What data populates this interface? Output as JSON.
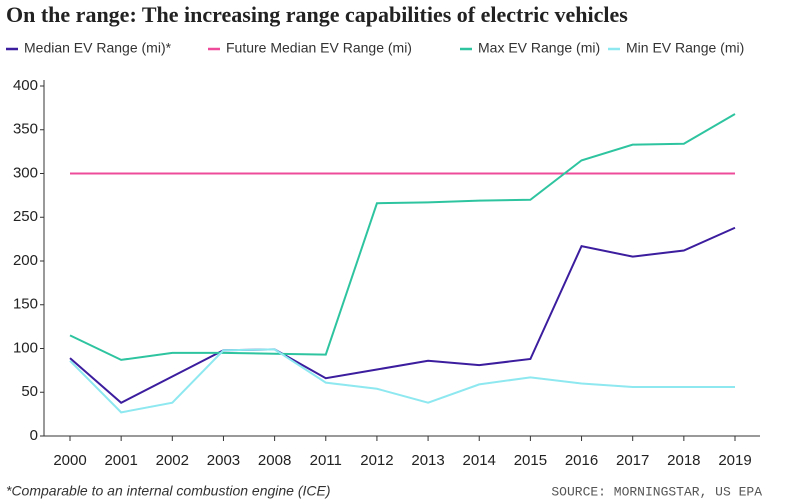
{
  "chart_data": {
    "type": "line",
    "title": "On the range: The increasing range capabilities of electric vehicles",
    "categories": [
      "2000",
      "2001",
      "2002",
      "2003",
      "2008",
      "2011",
      "2012",
      "2013",
      "2014",
      "2015",
      "2016",
      "2017",
      "2018",
      "2019"
    ],
    "series": [
      {
        "name": "Median EV Range (mi)*",
        "color": "#3b1d9e",
        "values": [
          89,
          38,
          68,
          98,
          99,
          66,
          76,
          86,
          81,
          88,
          217,
          205,
          212,
          238
        ]
      },
      {
        "name": "Future Median EV Range (mi)",
        "color": "#ee4c9b",
        "values": [
          300,
          300,
          300,
          300,
          300,
          300,
          300,
          300,
          300,
          300,
          300,
          300,
          300,
          300
        ]
      },
      {
        "name": "Max EV Range (mi)",
        "color": "#2ec4a0",
        "values": [
          115,
          87,
          95,
          95,
          94,
          93,
          266,
          267,
          269,
          270,
          315,
          333,
          334,
          368
        ]
      },
      {
        "name": "Min EV Range (mi)",
        "color": "#8ee8f0",
        "values": [
          86,
          27,
          38,
          98,
          99,
          61,
          54,
          38,
          59,
          67,
          60,
          56,
          56,
          56
        ]
      }
    ],
    "ylim": [
      0,
      400
    ],
    "yticks": [
      0,
      50,
      100,
      150,
      200,
      250,
      300,
      350,
      400
    ],
    "grid": false,
    "note": "*Comparable to an internal combustion engine (ICE)",
    "source": "SOURCE: MORNINGSTAR, US EPA"
  }
}
